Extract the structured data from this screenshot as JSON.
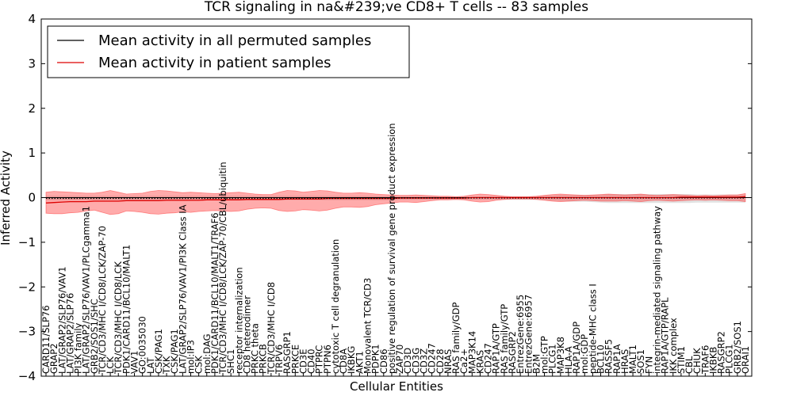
{
  "chart_data": {
    "type": "line",
    "title": "TCR signaling in na&#239;ve CD8+ T cells -- 83 samples",
    "xlabel": "Cellular Entities",
    "ylabel": "Inferred Activity",
    "ylim": [
      -4,
      4
    ],
    "yticks": [
      -4,
      -3,
      -2,
      -1,
      0,
      1,
      2,
      3,
      4
    ],
    "grid": false,
    "legend_position": "top-left",
    "legend": [
      "Mean activity in all permuted samples",
      "Mean activity in patient samples"
    ],
    "colors": {
      "permuted": "#000000",
      "patient": "#dd0000",
      "band": "#ff4444",
      "grey_band": "#aaaaaa"
    },
    "categories": [
      "CARD11/SLP76",
      "GRAP2",
      "LAT/GRAP2/SLP76/VAV1",
      "LAT/GRAP2/SLP76",
      "PI3K family",
      "LAT/GRAP2/SLP76/VAV1/PLCgamma1",
      "GRB2/SOS1/SHC",
      "TCR/CD3/MHC I/CD8/LCK/ZAP-70",
      "LCK",
      "TCR/CD3/MHC I/CD8/LCK",
      "PDK1/CARD11/BCL10/MALT1",
      "VAV1",
      "GO:0035030",
      "LAT",
      "CSK/PAG1",
      "TXK",
      "CSK/PAG1",
      "LAT/GRAP2/SLP76/VAV1/PI3K Class IA",
      "mol:IP3",
      "CSK",
      "mol:DAG",
      "PDK1/CARD11/BCL10/MALT1/TRAF6",
      "TCR/CD3/MHC I/CD8/LCK/ZAP-70/CBL/ubiquitin",
      "SHC1",
      "receptor internalization",
      "CD8 heterodimer",
      "PRKC theta",
      "PRKCB",
      "TCR/CD3/MHC I/CD8",
      "TRPV6",
      "RASGRP1",
      "PRKCE",
      "CD3E",
      "CD40",
      "PTPRC",
      "PTPN6",
      "cytotoxic T cell degranulation",
      "CD8A",
      "IKBKG",
      "AKT1",
      "Monovalent TCR/CD3",
      "PDPK1",
      "CD86",
      "positive regulation of survival gene product expression",
      "ZAP70",
      "CD3D",
      "CD3G",
      "CD3Z",
      "CD247",
      "CD28",
      "NRAS",
      "RAS family/GDP",
      "Ca2+",
      "MAP3K14",
      "KRAS",
      "CD247",
      "RAP1A/GTP",
      "RAS family/GTP",
      "RASGRP2",
      "EntrezGene:6955",
      "EntrezGene:6957",
      "B2M",
      "mol:GTP",
      "PLCG1",
      "MAP3K8",
      "HLA-A",
      "RAP1A/GDP",
      "mol:GDP",
      "peptide-MHC class I",
      "BCL10",
      "RASSF5",
      "RAP1A",
      "HRAS",
      "MALT1",
      "SOS1",
      "FYN",
      "integrin-mediated signaling pathway",
      "RAP1A/GTP/RAPL",
      "IKK complex",
      "STIM1",
      "CBL",
      "CHUK",
      "TRAF6",
      "IKBKB",
      "RASGRP2",
      "PLCG1",
      "GRB2/SOS1",
      "ORAI1"
    ],
    "series": [
      {
        "name": "Mean activity in all permuted samples",
        "values": [
          -0.02,
          -0.02,
          -0.02,
          -0.02,
          -0.02,
          -0.02,
          -0.02,
          -0.02,
          -0.02,
          -0.02,
          -0.02,
          -0.02,
          -0.02,
          -0.02,
          -0.02,
          -0.02,
          -0.02,
          -0.02,
          -0.02,
          -0.02,
          -0.02,
          -0.02,
          -0.02,
          -0.02,
          -0.02,
          -0.02,
          -0.02,
          -0.02,
          -0.02,
          -0.02,
          -0.02,
          -0.02,
          -0.02,
          -0.02,
          -0.02,
          -0.02,
          -0.02,
          -0.02,
          -0.02,
          -0.02,
          -0.02,
          -0.02,
          -0.02,
          -0.02,
          -0.01,
          -0.01,
          -0.01,
          -0.01,
          -0.01,
          -0.01,
          -0.01,
          -0.01,
          -0.01,
          -0.01,
          -0.01,
          -0.01,
          -0.01,
          -0.01,
          -0.01,
          -0.01,
          -0.01,
          -0.01,
          -0.01,
          -0.01,
          -0.01,
          -0.01,
          -0.01,
          -0.01,
          -0.01,
          -0.01,
          -0.01,
          -0.01,
          -0.01,
          -0.01,
          -0.01,
          -0.01,
          -0.01,
          -0.01,
          -0.01,
          -0.01,
          -0.01,
          -0.01,
          -0.01,
          -0.01,
          -0.01,
          -0.01,
          -0.01,
          -0.01
        ]
      },
      {
        "name": "Mean activity in patient samples",
        "values": [
          -0.12,
          -0.11,
          -0.1,
          -0.09,
          -0.09,
          -0.09,
          -0.08,
          -0.08,
          -0.08,
          -0.08,
          -0.07,
          -0.07,
          -0.07,
          -0.07,
          -0.07,
          -0.06,
          -0.06,
          -0.06,
          -0.06,
          -0.06,
          -0.05,
          -0.05,
          -0.05,
          -0.05,
          -0.05,
          -0.04,
          -0.04,
          -0.04,
          -0.04,
          -0.04,
          -0.03,
          -0.03,
          -0.03,
          -0.03,
          -0.03,
          -0.02,
          -0.02,
          -0.02,
          -0.02,
          -0.02,
          -0.02,
          -0.02,
          -0.02,
          -0.02,
          -0.01,
          -0.01,
          -0.01,
          -0.01,
          -0.01,
          -0.01,
          -0.01,
          -0.01,
          -0.01,
          0.0,
          0.0,
          0.0,
          0.0,
          0.0,
          0.0,
          0.0,
          0.0,
          0.0,
          0.0,
          0.0,
          0.0,
          0.0,
          0.0,
          0.0,
          0.0,
          0.0,
          0.0,
          0.0,
          0.0,
          0.0,
          0.0,
          0.0,
          0.0,
          0.0,
          0.0,
          0.01,
          0.01,
          0.01,
          0.01,
          0.01,
          0.01,
          0.01,
          0.01,
          0.02
        ]
      }
    ],
    "patient_band_upper": [
      0.12,
      0.14,
      0.13,
      0.12,
      0.11,
      0.1,
      0.1,
      0.12,
      0.16,
      0.12,
      0.08,
      0.09,
      0.1,
      0.14,
      0.16,
      0.15,
      0.13,
      0.11,
      0.12,
      0.11,
      0.1,
      0.09,
      0.1,
      0.11,
      0.12,
      0.1,
      0.08,
      0.07,
      0.07,
      0.12,
      0.16,
      0.15,
      0.12,
      0.14,
      0.16,
      0.15,
      0.12,
      0.1,
      0.1,
      0.11,
      0.1,
      0.08,
      0.07,
      0.06,
      0.05,
      0.05,
      0.06,
      0.05,
      0.04,
      0.03,
      0.03,
      0.02,
      0.03,
      0.06,
      0.08,
      0.07,
      0.05,
      0.03,
      0.02,
      0.02,
      0.02,
      0.03,
      0.05,
      0.07,
      0.08,
      0.07,
      0.06,
      0.05,
      0.06,
      0.07,
      0.08,
      0.07,
      0.06,
      0.07,
      0.08,
      0.06,
      0.05,
      0.06,
      0.07,
      0.06,
      0.05,
      0.04,
      0.05,
      0.04,
      0.05,
      0.06,
      0.06,
      0.09
    ],
    "patient_band_lower": [
      -0.35,
      -0.36,
      -0.36,
      -0.34,
      -0.33,
      -0.3,
      -0.28,
      -0.33,
      -0.38,
      -0.36,
      -0.3,
      -0.31,
      -0.33,
      -0.36,
      -0.37,
      -0.35,
      -0.34,
      -0.32,
      -0.33,
      -0.31,
      -0.3,
      -0.29,
      -0.3,
      -0.31,
      -0.3,
      -0.26,
      -0.24,
      -0.23,
      -0.24,
      -0.29,
      -0.31,
      -0.3,
      -0.27,
      -0.28,
      -0.3,
      -0.28,
      -0.24,
      -0.21,
      -0.21,
      -0.22,
      -0.2,
      -0.16,
      -0.14,
      -0.12,
      -0.1,
      -0.1,
      -0.11,
      -0.09,
      -0.07,
      -0.05,
      -0.05,
      -0.04,
      -0.05,
      -0.08,
      -0.1,
      -0.09,
      -0.06,
      -0.04,
      -0.03,
      -0.03,
      -0.03,
      -0.04,
      -0.06,
      -0.08,
      -0.09,
      -0.08,
      -0.07,
      -0.06,
      -0.07,
      -0.08,
      -0.08,
      -0.08,
      -0.07,
      -0.08,
      -0.09,
      -0.07,
      -0.06,
      -0.07,
      -0.08,
      -0.07,
      -0.06,
      -0.05,
      -0.06,
      -0.05,
      -0.06,
      -0.07,
      -0.07,
      -0.09
    ],
    "permuted_band_upper": [
      0.04,
      0.04,
      0.04,
      0.04,
      0.04,
      0.04,
      0.04,
      0.04,
      0.04,
      0.04,
      0.04,
      0.04,
      0.04,
      0.04,
      0.04,
      0.04,
      0.04,
      0.04,
      0.04,
      0.04,
      0.04,
      0.04,
      0.04,
      0.04,
      0.04,
      0.04,
      0.04,
      0.04,
      0.04,
      0.04,
      0.04,
      0.04,
      0.04,
      0.04,
      0.04,
      0.04,
      0.04,
      0.04,
      0.04,
      0.04,
      0.04,
      0.04,
      0.04,
      0.04,
      0.03,
      0.03,
      0.03,
      0.03,
      0.03,
      0.03,
      0.03,
      0.03,
      0.03,
      0.03,
      0.03,
      0.03,
      0.03,
      0.03,
      0.03,
      0.03,
      0.03,
      0.03,
      0.04,
      0.05,
      0.06,
      0.06,
      0.06,
      0.06,
      0.06,
      0.07,
      0.08,
      0.08,
      0.08,
      0.08,
      0.08,
      0.08,
      0.08,
      0.08,
      0.08,
      0.08,
      0.08,
      0.07,
      0.07,
      0.07,
      0.07,
      0.07,
      0.07,
      0.07
    ],
    "permuted_band_lower": [
      -0.06,
      -0.06,
      -0.06,
      -0.06,
      -0.06,
      -0.06,
      -0.06,
      -0.06,
      -0.06,
      -0.06,
      -0.06,
      -0.06,
      -0.06,
      -0.06,
      -0.06,
      -0.06,
      -0.06,
      -0.06,
      -0.06,
      -0.06,
      -0.06,
      -0.06,
      -0.06,
      -0.06,
      -0.06,
      -0.06,
      -0.06,
      -0.06,
      -0.06,
      -0.06,
      -0.06,
      -0.06,
      -0.06,
      -0.06,
      -0.06,
      -0.06,
      -0.06,
      -0.06,
      -0.06,
      -0.06,
      -0.06,
      -0.06,
      -0.06,
      -0.06,
      -0.05,
      -0.05,
      -0.05,
      -0.05,
      -0.05,
      -0.05,
      -0.05,
      -0.05,
      -0.05,
      -0.05,
      -0.05,
      -0.05,
      -0.05,
      -0.05,
      -0.05,
      -0.05,
      -0.05,
      -0.05,
      -0.06,
      -0.07,
      -0.08,
      -0.09,
      -0.09,
      -0.09,
      -0.1,
      -0.11,
      -0.12,
      -0.12,
      -0.12,
      -0.12,
      -0.12,
      -0.12,
      -0.12,
      -0.12,
      -0.12,
      -0.12,
      -0.12,
      -0.11,
      -0.11,
      -0.11,
      -0.11,
      -0.11,
      -0.11,
      -0.11
    ]
  }
}
